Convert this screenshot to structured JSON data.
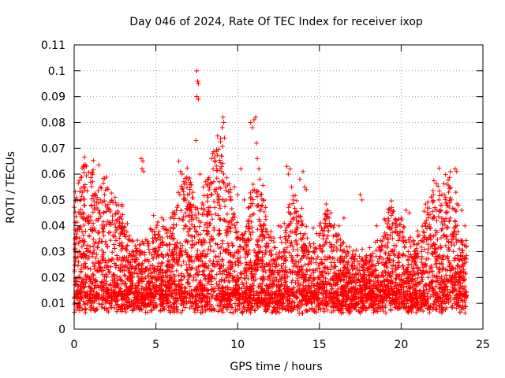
{
  "chart_data": {
    "type": "scatter",
    "title": "Day 046 of 2024, Rate Of TEC Index for receiver ixop",
    "xlabel": "GPS time / hours",
    "ylabel": "ROTI / TECUs",
    "xlim": [
      0,
      25
    ],
    "ylim": [
      0,
      0.11
    ],
    "xticks": [
      0,
      5,
      10,
      15,
      20,
      25
    ],
    "yticks": [
      0,
      0.01,
      0.02,
      0.03,
      0.04,
      0.05,
      0.06,
      0.07,
      0.08,
      0.09,
      0.1,
      0.11
    ],
    "xtick_labels": [
      "0",
      "5",
      "10",
      "15",
      "20",
      "25"
    ],
    "ytick_labels": [
      "0",
      "0.01",
      "0.02",
      "0.03",
      "0.04",
      "0.05",
      "0.06",
      "0.07",
      "0.08",
      "0.09",
      "0.1",
      "0.11"
    ],
    "grid": true,
    "legend": "none",
    "marker": "+",
    "marker_color": "#ff0000",
    "series": [
      {
        "name": "ROTI",
        "points": [
          [
            0.3,
            0.045
          ],
          [
            0.4,
            0.05
          ],
          [
            0.5,
            0.053
          ],
          [
            0.6,
            0.048
          ],
          [
            0.2,
            0.038
          ],
          [
            0.7,
            0.042
          ],
          [
            1.3,
            0.052
          ],
          [
            1.4,
            0.051
          ],
          [
            1.6,
            0.05
          ],
          [
            1.7,
            0.049
          ],
          [
            1.8,
            0.045
          ],
          [
            1.5,
            0.046
          ],
          [
            2.5,
            0.051
          ],
          [
            2.6,
            0.048
          ],
          [
            2.7,
            0.045
          ],
          [
            2.8,
            0.04
          ],
          [
            4.1,
            0.066
          ],
          [
            4.2,
            0.065
          ],
          [
            4.15,
            0.062
          ],
          [
            4.25,
            0.061
          ],
          [
            6.4,
            0.065
          ],
          [
            6.5,
            0.061
          ],
          [
            6.6,
            0.06
          ],
          [
            6.8,
            0.045
          ],
          [
            7.0,
            0.044
          ],
          [
            7.5,
            0.1
          ],
          [
            7.55,
            0.096
          ],
          [
            7.6,
            0.095
          ],
          [
            7.5,
            0.09
          ],
          [
            7.6,
            0.089
          ],
          [
            7.45,
            0.073
          ],
          [
            7.7,
            0.06
          ],
          [
            7.9,
            0.055
          ],
          [
            8.2,
            0.058
          ],
          [
            8.4,
            0.066
          ],
          [
            8.5,
            0.062
          ],
          [
            8.6,
            0.054
          ],
          [
            8.8,
            0.05
          ],
          [
            9.0,
            0.067
          ],
          [
            9.1,
            0.082
          ],
          [
            9.15,
            0.08
          ],
          [
            9.05,
            0.078
          ],
          [
            9.2,
            0.074
          ],
          [
            9.3,
            0.05
          ],
          [
            9.8,
            0.055
          ],
          [
            10.0,
            0.052
          ],
          [
            10.2,
            0.062
          ],
          [
            10.4,
            0.05
          ],
          [
            10.8,
            0.08
          ],
          [
            10.9,
            0.078
          ],
          [
            11.0,
            0.081
          ],
          [
            11.1,
            0.082
          ],
          [
            11.15,
            0.072
          ],
          [
            11.2,
            0.066
          ],
          [
            11.3,
            0.062
          ],
          [
            11.35,
            0.058
          ],
          [
            11.4,
            0.052
          ],
          [
            11.5,
            0.048
          ],
          [
            11.6,
            0.05
          ],
          [
            12.5,
            0.04
          ],
          [
            13.0,
            0.063
          ],
          [
            13.1,
            0.06
          ],
          [
            13.2,
            0.062
          ],
          [
            13.3,
            0.055
          ],
          [
            13.4,
            0.05
          ],
          [
            13.5,
            0.045
          ],
          [
            13.8,
            0.058
          ],
          [
            14.0,
            0.061
          ],
          [
            14.1,
            0.055
          ],
          [
            14.2,
            0.054
          ],
          [
            15.0,
            0.04
          ],
          [
            15.5,
            0.046
          ],
          [
            15.7,
            0.045
          ],
          [
            16.2,
            0.04
          ],
          [
            16.5,
            0.043
          ],
          [
            17.5,
            0.052
          ],
          [
            17.6,
            0.05
          ],
          [
            18.5,
            0.04
          ],
          [
            19.3,
            0.046
          ],
          [
            19.4,
            0.044
          ],
          [
            20.0,
            0.043
          ],
          [
            20.3,
            0.046
          ],
          [
            20.5,
            0.045
          ],
          [
            21.0,
            0.038
          ],
          [
            21.5,
            0.04
          ],
          [
            22.0,
            0.043
          ],
          [
            22.3,
            0.05
          ],
          [
            22.4,
            0.048
          ],
          [
            22.5,
            0.052
          ],
          [
            22.8,
            0.045
          ],
          [
            23.0,
            0.043
          ],
          [
            23.3,
            0.062
          ],
          [
            23.4,
            0.061
          ],
          [
            23.35,
            0.053
          ],
          [
            23.5,
            0.048
          ],
          [
            23.7,
            0.046
          ],
          [
            23.9,
            0.04
          ]
        ]
      }
    ]
  }
}
